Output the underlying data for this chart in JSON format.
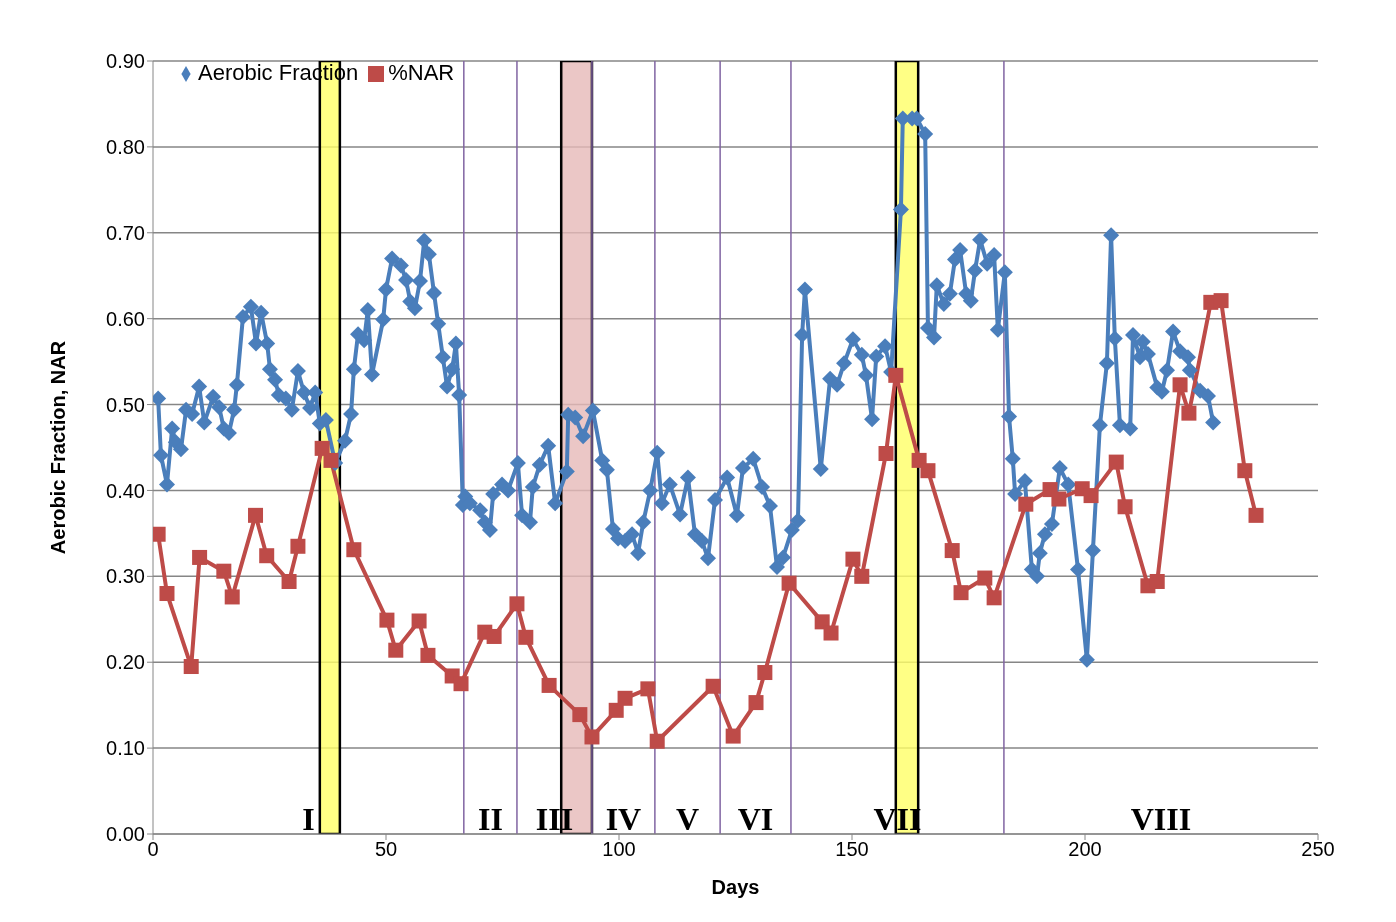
{
  "chart_data": {
    "type": "line",
    "xlabel": "Days",
    "ylabel": "Aerobic Fraction, NAR",
    "xlim": [
      0,
      250
    ],
    "xticks": [
      0,
      50,
      100,
      150,
      200,
      250
    ],
    "ylim": [
      0,
      0.9
    ],
    "yticks": [
      {
        "value": 0,
        "label": "0.00"
      },
      {
        "value": 0.1,
        "label": "0.10"
      },
      {
        "value": 0.2,
        "label": "0.20"
      },
      {
        "value": 0.3,
        "label": "0.30"
      },
      {
        "value": 0.4,
        "label": "0.40"
      },
      {
        "value": 0.5,
        "label": "0.50"
      },
      {
        "value": 0.6,
        "label": "0.60"
      },
      {
        "value": 0.7,
        "label": "0.70"
      },
      {
        "value": 0.8,
        "label": "0.80"
      },
      {
        "value": 0.9,
        "label": "0.90"
      }
    ],
    "grid": "y",
    "legend": "top left",
    "series": [
      {
        "name": "Aerobic Fraction",
        "color": "#4a7ebb",
        "marker": "diamond",
        "x": [
          1.1,
          1.7,
          3.0,
          4.1,
          4.9,
          6.0,
          7.1,
          8.4,
          9.9,
          11.0,
          12.9,
          14.2,
          15.2,
          16.3,
          17.4,
          18.0,
          19.3,
          21.0,
          22.1,
          23.2,
          24.5,
          25.1,
          26.2,
          27.0,
          28.5,
          29.8,
          31.1,
          32.4,
          33.7,
          34.8,
          35.8,
          37.1,
          39.1,
          41.2,
          42.5,
          43.1,
          44.0,
          45.3,
          46.1,
          47.0,
          49.4,
          50.0,
          51.3,
          53.2,
          54.3,
          55.2,
          56.2,
          57.3,
          58.2,
          59.2,
          60.3,
          61.2,
          62.2,
          63.1,
          64.2,
          65.0,
          65.7,
          66.5,
          67.0,
          68.0,
          70.2,
          71.2,
          72.3,
          73.0,
          74.9,
          76.2,
          78.3,
          79.2,
          80.9,
          81.5,
          83.0,
          84.8,
          86.3,
          88.8,
          89.1,
          90.6,
          92.3,
          94.4,
          96.4,
          97.4,
          98.7,
          99.8,
          101.3,
          102.8,
          104.1,
          105.2,
          106.7,
          108.2,
          109.2,
          110.9,
          113.1,
          114.8,
          116.3,
          117.8,
          119.1,
          120.6,
          123.2,
          125.3,
          126.6,
          128.8,
          130.7,
          132.4,
          133.9,
          135.2,
          137.1,
          138.4,
          139.3,
          139.9,
          143.3,
          145.3,
          146.8,
          148.3,
          150.2,
          152.1,
          153.0,
          154.3,
          155.2,
          157.1,
          158.4,
          160.5,
          160.9,
          162.9,
          163.9,
          165.7,
          166.3,
          167.6,
          168.2,
          169.7,
          171.0,
          172.1,
          173.2,
          174.5,
          175.5,
          176.4,
          177.5,
          179.0,
          180.5,
          181.3,
          182.8,
          183.7,
          184.5,
          185.0,
          187.1,
          188.6,
          189.7,
          190.3,
          191.4,
          192.9,
          194.6,
          196.4,
          198.5,
          200.4,
          201.7,
          203.2,
          204.7,
          205.6,
          206.4,
          207.5,
          209.7,
          210.3,
          211.8,
          212.4,
          213.5,
          215.5,
          216.5,
          217.6,
          218.9,
          220.4,
          222.1,
          222.5,
          224.7,
          226.4,
          227.5
        ],
        "values": [
          0.507,
          0.441,
          0.407,
          0.472,
          0.456,
          0.448,
          0.494,
          0.489,
          0.521,
          0.479,
          0.509,
          0.497,
          0.472,
          0.467,
          0.494,
          0.523,
          0.602,
          0.614,
          0.571,
          0.607,
          0.571,
          0.541,
          0.529,
          0.511,
          0.507,
          0.494,
          0.539,
          0.514,
          0.496,
          0.514,
          0.478,
          0.482,
          0.432,
          0.458,
          0.489,
          0.541,
          0.582,
          0.575,
          0.61,
          0.535,
          0.599,
          0.634,
          0.67,
          0.662,
          0.645,
          0.62,
          0.612,
          0.644,
          0.691,
          0.675,
          0.63,
          0.594,
          0.555,
          0.521,
          0.541,
          0.571,
          0.511,
          0.383,
          0.393,
          0.385,
          0.377,
          0.363,
          0.354,
          0.396,
          0.407,
          0.4,
          0.432,
          0.371,
          0.363,
          0.404,
          0.43,
          0.452,
          0.385,
          0.422,
          0.488,
          0.485,
          0.463,
          0.493,
          0.435,
          0.424,
          0.355,
          0.344,
          0.341,
          0.349,
          0.327,
          0.363,
          0.4,
          0.444,
          0.385,
          0.407,
          0.372,
          0.415,
          0.349,
          0.341,
          0.321,
          0.389,
          0.415,
          0.371,
          0.426,
          0.437,
          0.404,
          0.382,
          0.311,
          0.322,
          0.354,
          0.365,
          0.581,
          0.634,
          0.425,
          0.53,
          0.523,
          0.548,
          0.576,
          0.558,
          0.534,
          0.483,
          0.556,
          0.568,
          0.538,
          0.727,
          0.833,
          0.833,
          0.833,
          0.815,
          0.589,
          0.578,
          0.639,
          0.617,
          0.629,
          0.669,
          0.68,
          0.629,
          0.621,
          0.656,
          0.692,
          0.664,
          0.674,
          0.587,
          0.654,
          0.486,
          0.437,
          0.396,
          0.411,
          0.308,
          0.3,
          0.327,
          0.349,
          0.361,
          0.426,
          0.407,
          0.308,
          0.203,
          0.33,
          0.476,
          0.548,
          0.697,
          0.577,
          0.476,
          0.472,
          0.581,
          0.555,
          0.573,
          0.559,
          0.52,
          0.515,
          0.54,
          0.585,
          0.562,
          0.555,
          0.54,
          0.516,
          0.51,
          0.479
        ]
      },
      {
        "name": "%NAR",
        "color": "#be4b48",
        "marker": "square",
        "x": [
          1.1,
          3.0,
          8.2,
          10.0,
          15.2,
          17.0,
          22.0,
          24.4,
          29.2,
          31.1,
          36.3,
          38.2,
          43.1,
          50.2,
          52.1,
          57.1,
          59.0,
          64.2,
          66.1,
          71.2,
          73.2,
          78.1,
          80.0,
          85.0,
          91.6,
          94.2,
          99.4,
          101.3,
          106.2,
          108.2,
          120.2,
          124.5,
          129.4,
          131.3,
          136.5,
          143.6,
          145.5,
          150.2,
          152.1,
          157.3,
          159.4,
          164.4,
          166.3,
          171.5,
          173.4,
          178.5,
          180.5,
          187.3,
          192.5,
          194.4,
          199.4,
          201.3,
          206.7,
          208.6,
          213.5,
          215.5,
          220.4,
          222.3,
          227.0,
          229.2,
          234.3,
          236.7
        ],
        "values": [
          0.349,
          0.28,
          0.195,
          0.322,
          0.306,
          0.276,
          0.371,
          0.324,
          0.294,
          0.335,
          0.449,
          0.435,
          0.331,
          0.249,
          0.214,
          0.248,
          0.208,
          0.184,
          0.175,
          0.235,
          0.23,
          0.268,
          0.229,
          0.173,
          0.139,
          0.113,
          0.144,
          0.158,
          0.169,
          0.108,
          0.172,
          0.114,
          0.153,
          0.188,
          0.292,
          0.247,
          0.234,
          0.32,
          0.3,
          0.443,
          0.534,
          0.435,
          0.423,
          0.33,
          0.281,
          0.298,
          0.275,
          0.384,
          0.401,
          0.39,
          0.402,
          0.394,
          0.433,
          0.381,
          0.289,
          0.294,
          0.523,
          0.49,
          0.619,
          0.621,
          0.423,
          0.371
        ]
      }
    ],
    "bands": [
      {
        "axis": "x",
        "from": 35.8,
        "to": 40.1,
        "color": "#ffff66"
      },
      {
        "axis": "x",
        "from": 87.6,
        "to": 94.2,
        "color": "#e6b9b8"
      },
      {
        "axis": "x",
        "from": 159.4,
        "to": 164.2,
        "color": "#ffff66"
      }
    ],
    "ref_lines": [
      {
        "axis": "x",
        "value": 66.7,
        "color": "#8064a2"
      },
      {
        "axis": "x",
        "value": 78.1,
        "color": "#8064a2"
      },
      {
        "axis": "x",
        "value": 94.2,
        "color": "#8064a2"
      },
      {
        "axis": "x",
        "value": 107.7,
        "color": "#8064a2"
      },
      {
        "axis": "x",
        "value": 121.7,
        "color": "#8064a2"
      },
      {
        "axis": "x",
        "value": 136.9,
        "color": "#8064a2"
      },
      {
        "axis": "x",
        "value": 182.6,
        "color": "#8064a2"
      }
    ],
    "annotations": [
      "I",
      "II",
      "III",
      "IV",
      "V",
      "VI",
      "VII",
      "VIII"
    ]
  }
}
